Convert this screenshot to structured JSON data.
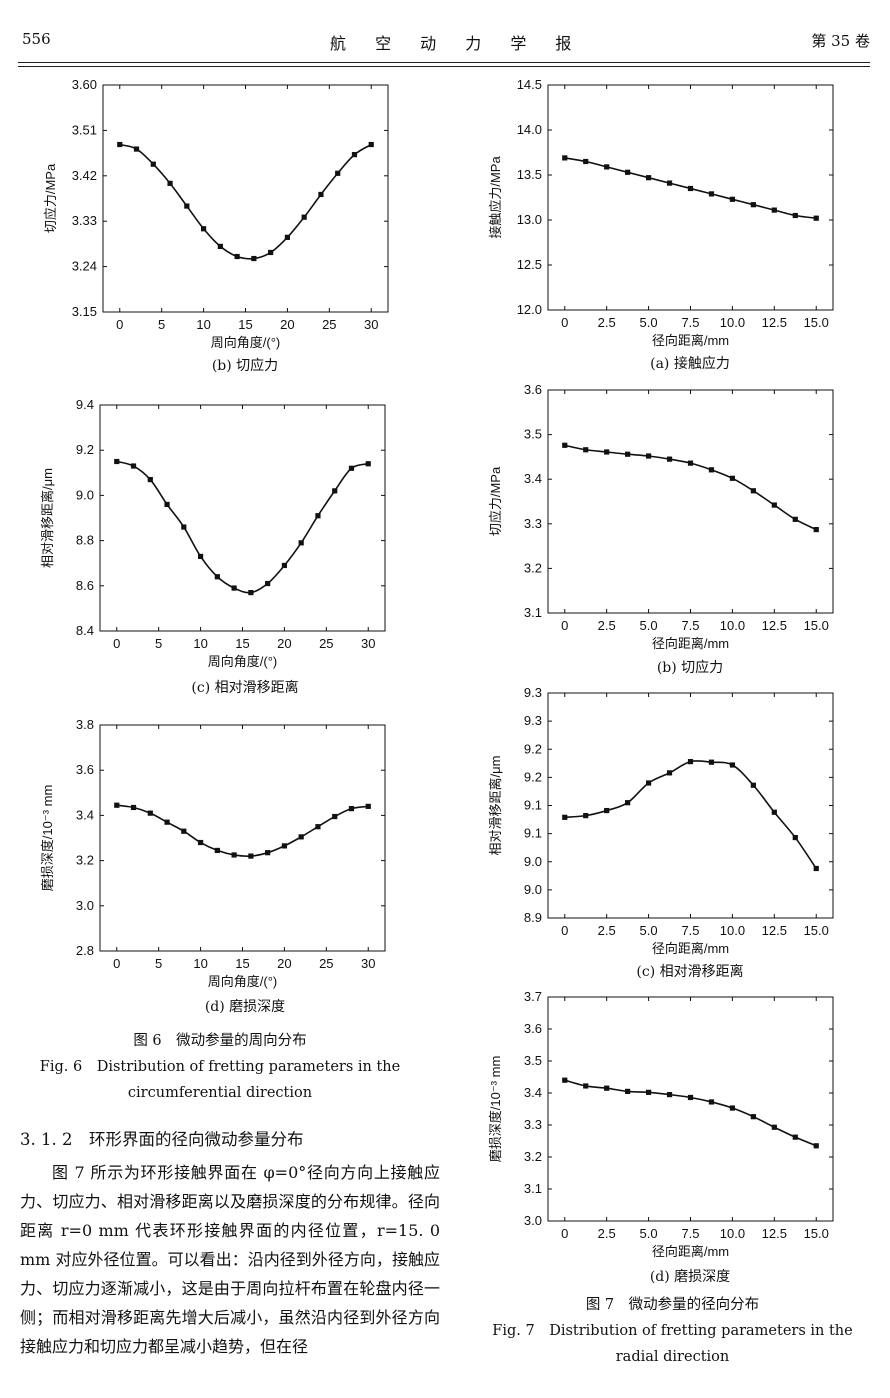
{
  "header": {
    "page": "556",
    "journal": "航 空 动 力 学 报",
    "volume": "第 35 卷"
  },
  "fig6": {
    "caption_cn": "图 6　微动参量的周向分布",
    "caption_en_1": "Fig. 6　Distribution of fretting parameters in the",
    "caption_en_2": "circumferential direction"
  },
  "fig7": {
    "caption_cn": "图 7　微动参量的径向分布",
    "caption_en_1": "Fig. 7　Distribution of fretting parameters in the",
    "caption_en_2": "radial direction"
  },
  "section_title": "3. 1. 2　环形界面的径向微动参量分布",
  "paragraph": "图 7 所示为环形接触界面在 φ=0°径向方向上接触应力、切应力、相对滑移距离以及磨损深度的分布规律。径向距离 r=0 mm 代表环形接触界面的内径位置，r=15. 0 mm 对应外径位置。可以看出：沿内径到外径方向，接触应力、切应力逐渐减小，这是由于周向拉杆布置在轮盘内径一侧；而相对滑移距离先增大后减小，虽然沿内径到外径方向接触应力和切应力都呈减小趋势，但在径",
  "chart_data": [
    {
      "id": "6b",
      "type": "line",
      "caption": "(b) 切应力",
      "xlabel": "周向角度/(°)",
      "ylabel": "切应力/MPa",
      "xlim": [
        -2,
        32
      ],
      "ylim": [
        3.15,
        3.6
      ],
      "xticks": [
        0,
        5,
        10,
        15,
        20,
        25,
        30
      ],
      "xtick_labels": [
        "0",
        "5",
        "10",
        "15",
        "20",
        "25",
        "30"
      ],
      "yticks": [
        3.15,
        3.24,
        3.33,
        3.42,
        3.51,
        3.6
      ],
      "ytick_labels": [
        "3.15",
        "3.24",
        "3.33",
        "3.42",
        "3.51",
        "3.60"
      ],
      "x": [
        0,
        2,
        4,
        6,
        8,
        10,
        12,
        14,
        16,
        18,
        20,
        22,
        24,
        26,
        28,
        30
      ],
      "y": [
        3.482,
        3.473,
        3.443,
        3.405,
        3.36,
        3.315,
        3.28,
        3.26,
        3.256,
        3.268,
        3.298,
        3.338,
        3.383,
        3.425,
        3.462,
        3.482
      ]
    },
    {
      "id": "6c",
      "type": "line",
      "caption": "(c) 相对滑移距离",
      "xlabel": "周向角度/(°)",
      "ylabel": "相对滑移距离/μm",
      "xlim": [
        -2,
        32
      ],
      "ylim": [
        8.4,
        9.4
      ],
      "xticks": [
        0,
        5,
        10,
        15,
        20,
        25,
        30
      ],
      "xtick_labels": [
        "0",
        "5",
        "10",
        "15",
        "20",
        "25",
        "30"
      ],
      "yticks": [
        8.4,
        8.6,
        8.8,
        9.0,
        9.2,
        9.4
      ],
      "ytick_labels": [
        "8.4",
        "8.6",
        "8.8",
        "9.0",
        "9.2",
        "9.4"
      ],
      "x": [
        0,
        2,
        4,
        6,
        8,
        10,
        12,
        14,
        16,
        18,
        20,
        22,
        24,
        26,
        28,
        30
      ],
      "y": [
        9.15,
        9.13,
        9.07,
        8.96,
        8.86,
        8.73,
        8.64,
        8.59,
        8.57,
        8.61,
        8.69,
        8.79,
        8.91,
        9.02,
        9.12,
        9.14
      ]
    },
    {
      "id": "6d",
      "type": "line",
      "caption": "(d) 磨损深度",
      "xlabel": "周向角度/(°)",
      "ylabel": "磨损深度/10⁻³ mm",
      "xlim": [
        -2,
        32
      ],
      "ylim": [
        2.8,
        3.8
      ],
      "xticks": [
        0,
        5,
        10,
        15,
        20,
        25,
        30
      ],
      "xtick_labels": [
        "0",
        "5",
        "10",
        "15",
        "20",
        "25",
        "30"
      ],
      "yticks": [
        2.8,
        3.0,
        3.2,
        3.4,
        3.6,
        3.8
      ],
      "ytick_labels": [
        "2.8",
        "3.0",
        "3.2",
        "3.4",
        "3.6",
        "3.8"
      ],
      "x": [
        0,
        2,
        4,
        6,
        8,
        10,
        12,
        14,
        16,
        18,
        20,
        22,
        24,
        26,
        28,
        30
      ],
      "y": [
        3.445,
        3.435,
        3.41,
        3.37,
        3.33,
        3.28,
        3.245,
        3.225,
        3.22,
        3.235,
        3.265,
        3.305,
        3.35,
        3.395,
        3.43,
        3.44
      ]
    },
    {
      "id": "7a",
      "type": "line",
      "caption": "(a) 接触应力",
      "xlabel": "径向距离/mm",
      "ylabel": "接触应力/MPa",
      "xlim": [
        -1,
        16
      ],
      "ylim": [
        12.0,
        14.5
      ],
      "xticks": [
        0,
        2.5,
        5,
        7.5,
        10,
        12.5,
        15
      ],
      "xtick_labels": [
        "0",
        "2.5",
        "5.0",
        "7.5",
        "10.0",
        "12.5",
        "15.0"
      ],
      "yticks": [
        12.0,
        12.5,
        13.0,
        13.5,
        14.0,
        14.5
      ],
      "ytick_labels": [
        "12.0",
        "12.5",
        "13.0",
        "13.5",
        "14.0",
        "14.5"
      ],
      "x": [
        0,
        1.25,
        2.5,
        3.75,
        5,
        6.25,
        7.5,
        8.75,
        10,
        11.25,
        12.5,
        13.75,
        15
      ],
      "y": [
        13.69,
        13.65,
        13.59,
        13.53,
        13.47,
        13.41,
        13.35,
        13.29,
        13.23,
        13.17,
        13.11,
        13.05,
        13.02
      ]
    },
    {
      "id": "7b",
      "type": "line",
      "caption": "(b) 切应力",
      "xlabel": "径向距离/mm",
      "ylabel": "切应力/MPa",
      "xlim": [
        -1,
        16
      ],
      "ylim": [
        3.1,
        3.6
      ],
      "xticks": [
        0,
        2.5,
        5,
        7.5,
        10,
        12.5,
        15
      ],
      "xtick_labels": [
        "0",
        "2.5",
        "5.0",
        "7.5",
        "10.0",
        "12.5",
        "15.0"
      ],
      "yticks": [
        3.1,
        3.2,
        3.3,
        3.4,
        3.5,
        3.6
      ],
      "ytick_labels": [
        "3.1",
        "3.2",
        "3.3",
        "3.4",
        "3.5",
        "3.6"
      ],
      "x": [
        0,
        1.25,
        2.5,
        3.75,
        5,
        6.25,
        7.5,
        8.75,
        10,
        11.25,
        12.5,
        13.75,
        15
      ],
      "y": [
        3.476,
        3.466,
        3.461,
        3.456,
        3.452,
        3.445,
        3.436,
        3.421,
        3.402,
        3.374,
        3.342,
        3.31,
        3.287
      ]
    },
    {
      "id": "7c",
      "type": "line",
      "caption": "(c) 相对滑移距离",
      "xlabel": "径向距离/mm",
      "ylabel": "相对滑移距离/μm",
      "xlim": [
        -1,
        16
      ],
      "ylim": [
        8.9,
        9.3
      ],
      "xticks": [
        0,
        2.5,
        5,
        7.5,
        10,
        12.5,
        15
      ],
      "xtick_labels": [
        "0",
        "2.5",
        "5.0",
        "7.5",
        "10.0",
        "12.5",
        "15.0"
      ],
      "yticks": [
        8.9,
        8.95,
        9.0,
        9.05,
        9.1,
        9.15,
        9.2,
        9.25,
        9.3
      ],
      "ytick_labels": [
        "8.9",
        "9.0",
        "9.0",
        "9.1",
        "9.1",
        "9.2",
        "9.2",
        "9.3",
        "9.3"
      ],
      "x": [
        0,
        1.25,
        2.5,
        3.75,
        5,
        6.25,
        7.5,
        8.75,
        10,
        11.25,
        12.5,
        13.75,
        15
      ],
      "y": [
        9.079,
        9.082,
        9.091,
        9.105,
        9.14,
        9.158,
        9.178,
        9.177,
        9.172,
        9.136,
        9.088,
        9.043,
        8.988
      ]
    },
    {
      "id": "7d",
      "type": "line",
      "caption": "(d) 磨损深度",
      "xlabel": "径向距离/mm",
      "ylabel": "磨损深度/10⁻³ mm",
      "xlim": [
        -1,
        16
      ],
      "ylim": [
        3.0,
        3.7
      ],
      "xticks": [
        0,
        2.5,
        5,
        7.5,
        10,
        12.5,
        15
      ],
      "xtick_labels": [
        "0",
        "2.5",
        "5.0",
        "7.5",
        "10.0",
        "12.5",
        "15.0"
      ],
      "yticks": [
        3.0,
        3.1,
        3.2,
        3.3,
        3.4,
        3.5,
        3.6,
        3.7
      ],
      "ytick_labels": [
        "3.0",
        "3.1",
        "3.2",
        "3.3",
        "3.4",
        "3.5",
        "3.6",
        "3.7"
      ],
      "x": [
        0,
        1.25,
        2.5,
        3.75,
        5,
        6.25,
        7.5,
        8.75,
        10,
        11.25,
        12.5,
        13.75,
        15
      ],
      "y": [
        3.44,
        3.422,
        3.415,
        3.405,
        3.402,
        3.395,
        3.386,
        3.372,
        3.353,
        3.326,
        3.293,
        3.262,
        3.235
      ]
    }
  ]
}
